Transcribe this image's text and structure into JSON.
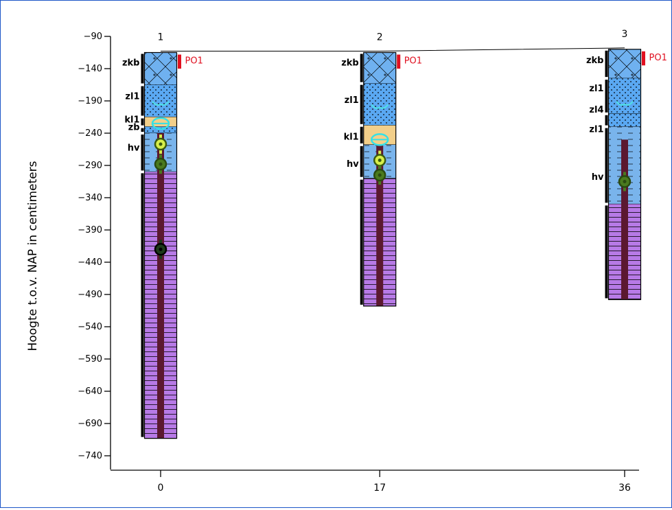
{
  "chart_data": {
    "type": "borehole-profile",
    "ylabel": "Hoogte t.o.v. NAP in centimeters",
    "ylim": [
      -740,
      -90
    ],
    "y_ticks": [
      -90,
      -140,
      -190,
      -240,
      -290,
      -340,
      -390,
      -440,
      -490,
      -540,
      -590,
      -640,
      -690,
      -740
    ],
    "x_ticks": [
      0,
      17,
      36
    ],
    "xlim": [
      0,
      36
    ],
    "colors": {
      "zkb": "#6fb1f0",
      "zl": "#5aa8f2",
      "kl": "#f2cf8a",
      "hv": "#79b4ec",
      "veen": "#b77ae6",
      "core": "#5b1830",
      "sample": "#e01020",
      "axis": "#000000"
    },
    "boreholes": [
      {
        "id": "1",
        "x": 0,
        "top": -115,
        "bottom": -713,
        "layers": [
          {
            "code": "zkb",
            "top": -115,
            "bottom": -165,
            "fill": "zkb",
            "pattern": "cross"
          },
          {
            "code": "zl1",
            "top": -165,
            "bottom": -215,
            "fill": "zl",
            "pattern": "dots"
          },
          {
            "code": "kl1",
            "top": -215,
            "bottom": -230,
            "fill": "kl",
            "pattern": "none"
          },
          {
            "code": "zb",
            "top": -230,
            "bottom": -240,
            "fill": "zl",
            "pattern": "dots"
          },
          {
            "code": "hv",
            "top": -240,
            "bottom": -300,
            "fill": "hv",
            "pattern": "dash"
          },
          {
            "code": "",
            "top": -300,
            "bottom": -713,
            "fill": "veen",
            "pattern": "lines"
          }
        ],
        "labels": [
          {
            "text": "zkb",
            "y": -130
          },
          {
            "text": "zl1",
            "y": -182
          },
          {
            "text": "kl1",
            "y": -218
          },
          {
            "text": "zb",
            "y": -230
          },
          {
            "text": "hv",
            "y": -262
          }
        ],
        "sample_label": {
          "text": "PO1",
          "top": -115,
          "bottom": -140
        },
        "core_top": -240,
        "symbols": [
          {
            "type": "cyan-arc",
            "y": -195
          },
          {
            "type": "cyan-ring",
            "y": -225
          },
          {
            "type": "yellow-ring",
            "y": -257
          },
          {
            "type": "green-ring",
            "y": -288
          },
          {
            "type": "dark-ring",
            "y": -420
          }
        ]
      },
      {
        "id": "2",
        "x": 17,
        "top": -115,
        "bottom": -508,
        "layers": [
          {
            "code": "zkb",
            "top": -115,
            "bottom": -163,
            "fill": "zkb",
            "pattern": "cross"
          },
          {
            "code": "zl1",
            "top": -163,
            "bottom": -228,
            "fill": "zl",
            "pattern": "dots"
          },
          {
            "code": "kl1",
            "top": -228,
            "bottom": -258,
            "fill": "kl",
            "pattern": "none"
          },
          {
            "code": "hv",
            "top": -258,
            "bottom": -310,
            "fill": "hv",
            "pattern": "dash"
          },
          {
            "code": "",
            "top": -310,
            "bottom": -508,
            "fill": "veen",
            "pattern": "lines"
          }
        ],
        "labels": [
          {
            "text": "zkb",
            "y": -130
          },
          {
            "text": "zl1",
            "y": -188
          },
          {
            "text": "kl1",
            "y": -245
          },
          {
            "text": "hv",
            "y": -287
          }
        ],
        "sample_label": {
          "text": "PO1",
          "top": -115,
          "bottom": -140
        },
        "core_top": -258,
        "symbols": [
          {
            "type": "cyan-arc",
            "y": -200
          },
          {
            "type": "cyan-ring",
            "y": -250
          },
          {
            "type": "yellow-ring",
            "y": -282
          },
          {
            "type": "green-ring",
            "y": -305
          }
        ]
      },
      {
        "id": "3",
        "x": 36,
        "top": -110,
        "bottom": -498,
        "layers": [
          {
            "code": "zkb",
            "top": -110,
            "bottom": -155,
            "fill": "zkb",
            "pattern": "cross"
          },
          {
            "code": "zl1",
            "top": -155,
            "bottom": -210,
            "fill": "zl",
            "pattern": "dots"
          },
          {
            "code": "zl4",
            "top": -210,
            "bottom": -230,
            "fill": "zl",
            "pattern": "dots"
          },
          {
            "code": "zl1",
            "top": -230,
            "bottom": -350,
            "fill": "hv",
            "pattern": "dash"
          },
          {
            "code": "",
            "top": -350,
            "bottom": -498,
            "fill": "veen",
            "pattern": "lines"
          }
        ],
        "labels": [
          {
            "text": "zkb",
            "y": -126
          },
          {
            "text": "zl1",
            "y": -170
          },
          {
            "text": "zl4",
            "y": -203
          },
          {
            "text": "zl1",
            "y": -233
          },
          {
            "text": "hv",
            "y": -307
          }
        ],
        "sample_label": {
          "text": "PO1",
          "top": -110,
          "bottom": -135
        },
        "core_top": -250,
        "symbols": [
          {
            "type": "cyan-arc",
            "y": -195
          },
          {
            "type": "green-ring",
            "y": -315
          }
        ]
      }
    ]
  }
}
